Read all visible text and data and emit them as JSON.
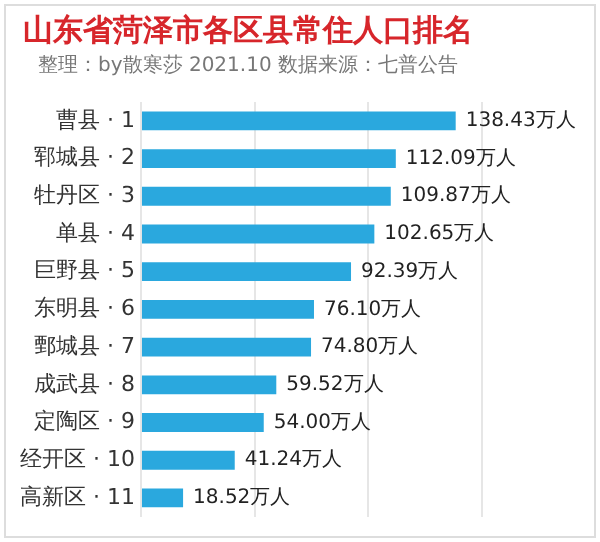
{
  "chart_data": {
    "type": "bar",
    "orientation": "horizontal",
    "title": "山东省菏泽市各区县常住人口排名",
    "subtitle": "整理：by散寒莎 2021.10 数据来源：七普公告",
    "categories": [
      "曹县 · 1",
      "郓城县 · 2",
      "牡丹区 · 3",
      "单县 · 4",
      "巨野县 · 5",
      "东明县 · 6",
      "鄄城县 · 7",
      "成武县 · 8",
      "定陶区 · 9",
      "经开区 · 10",
      "高新区 · 11"
    ],
    "values": [
      138.43,
      112.09,
      109.87,
      102.65,
      92.39,
      76.1,
      74.8,
      59.52,
      54.0,
      41.24,
      18.52
    ],
    "value_labels": [
      "138.43万人",
      "112.09万人",
      "109.87万人",
      "102.65万人",
      "92.39万人",
      "76.10万人",
      "74.80万人",
      "59.52万人",
      "54.00万人",
      "41.24万人",
      "18.52万人"
    ],
    "color": "#2aa8de",
    "xlim": [
      0,
      150
    ],
    "xticks": [
      {
        "value": 0,
        "label": null
      },
      {
        "value": 50,
        "label": null
      },
      {
        "value": 100,
        "label": null
      },
      {
        "value": 150,
        "label": null
      }
    ],
    "grid": "x",
    "tick_labels": "y",
    "legend": false
  }
}
